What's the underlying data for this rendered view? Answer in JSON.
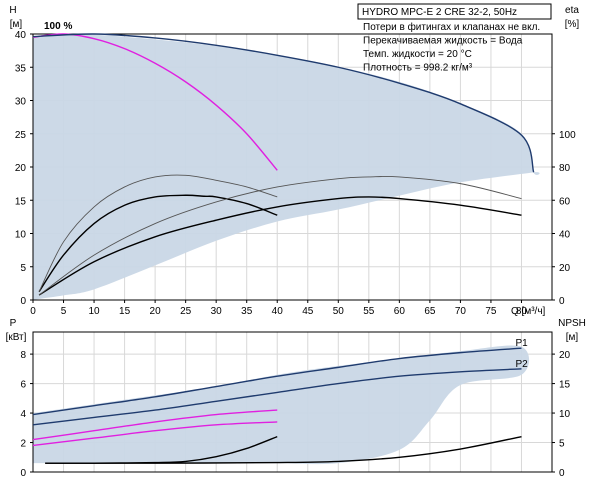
{
  "chart_data": [
    {
      "type": "line",
      "title": "HYDRO MPC-E 2 CRE 32-2, 50Hz",
      "notes": [
        "Потери в фитингах и клапанах не вкл.",
        "Перекачиваемая жидкость = Вода",
        "Темп. жидкости = 20 °C",
        "Плотность = 998.2 кг/м³"
      ],
      "duty_label": "100 %",
      "x_axis": {
        "label": "Q [м³/ч]",
        "range": [
          0,
          85
        ],
        "ticks": [
          0,
          5,
          10,
          15,
          20,
          25,
          30,
          35,
          40,
          45,
          50,
          55,
          60,
          65,
          70,
          75,
          80
        ]
      },
      "y_left": {
        "label_top": "H",
        "label_unit": "[м]",
        "range": [
          0,
          40
        ],
        "ticks": [
          0,
          5,
          10,
          15,
          20,
          25,
          30,
          35,
          40
        ]
      },
      "y_right": {
        "label_top": "eta",
        "label_unit": "[%]",
        "range": [
          0,
          160
        ],
        "ticks": [
          0,
          20,
          40,
          60,
          80,
          100
        ]
      },
      "envelope": {
        "x": [
          0,
          2,
          5,
          10,
          20,
          30,
          40,
          50,
          60,
          70,
          80,
          82,
          82,
          70,
          60,
          50,
          40,
          30,
          20,
          10,
          5,
          2,
          0
        ],
        "y": [
          39.5,
          39.9,
          40,
          39.9,
          39.2,
          38.2,
          36.8,
          35.1,
          32.8,
          29.6,
          25.0,
          19.2,
          19.2,
          17.7,
          15.7,
          13.6,
          11.8,
          8.9,
          5.2,
          1.6,
          0.7,
          0.3,
          0
        ]
      },
      "series": [
        {
          "name": "",
          "axis": "left",
          "color": "#e020e0",
          "x": [
            0,
            5,
            10,
            15,
            20,
            25,
            30,
            35,
            40
          ],
          "y": [
            39.5,
            40,
            39.3,
            37.8,
            35.6,
            32.8,
            29.3,
            25.0,
            19.5
          ]
        },
        {
          "name": "",
          "axis": "left",
          "color": "#1f3b6e",
          "x": [
            0,
            10,
            20,
            30,
            40,
            50,
            60,
            70,
            80,
            82
          ],
          "y": [
            39.6,
            40,
            39.4,
            38.3,
            36.8,
            35.0,
            32.6,
            29.5,
            24.8,
            19.2
          ]
        },
        {
          "name": "",
          "axis": "right",
          "color": "#000000",
          "x": [
            1,
            5,
            10,
            15,
            20,
            25,
            28,
            30,
            35,
            40
          ],
          "y": [
            5,
            27,
            46,
            57,
            62,
            63,
            62.4,
            62,
            58,
            51
          ]
        },
        {
          "name": "",
          "axis": "right",
          "color": "#555555",
          "x": [
            1,
            5,
            10,
            15,
            20,
            25,
            30,
            35,
            40
          ],
          "y": [
            5,
            35,
            56,
            68,
            74,
            75,
            72,
            68,
            62
          ]
        },
        {
          "name": "",
          "axis": "right",
          "color": "#000000",
          "x": [
            1,
            10,
            20,
            30,
            40,
            50,
            55,
            60,
            70,
            80
          ],
          "y": [
            3,
            23,
            38,
            48,
            56,
            61,
            62,
            61,
            57,
            51
          ]
        },
        {
          "name": "",
          "axis": "right",
          "color": "#555555",
          "x": [
            1,
            10,
            20,
            30,
            40,
            50,
            55,
            60,
            70,
            80
          ],
          "y": [
            3,
            27,
            46,
            59,
            68,
            73,
            74,
            74,
            70,
            61
          ]
        }
      ]
    },
    {
      "type": "line",
      "x_axis": {
        "range": [
          0,
          85
        ]
      },
      "y_left": {
        "label_top": "P",
        "label_unit": "[кВт]",
        "range": [
          0,
          9.5
        ],
        "ticks": [
          0,
          2,
          4,
          6,
          8
        ]
      },
      "y_right": {
        "label_top": "NPSH",
        "label_unit": "[м]",
        "range": [
          0,
          23.75
        ],
        "ticks": [
          0,
          5,
          10,
          15,
          20
        ]
      },
      "envelope": {
        "x": [
          0,
          10,
          20,
          30,
          40,
          50,
          60,
          70,
          80,
          80,
          70,
          65,
          60,
          50,
          40,
          30,
          20,
          10,
          0
        ],
        "y": [
          4.0,
          4.6,
          5.2,
          5.8,
          6.6,
          7.2,
          7.7,
          8.2,
          8.5,
          6.6,
          5.9,
          3.5,
          1.5,
          0.6,
          0.6,
          0.6,
          0.6,
          0.6,
          0.6
        ]
      },
      "series": [
        {
          "name": "P1",
          "axis": "left",
          "color": "#1f3b6e",
          "x": [
            0,
            10,
            20,
            30,
            40,
            50,
            60,
            70,
            80
          ],
          "y": [
            3.9,
            4.5,
            5.1,
            5.8,
            6.5,
            7.1,
            7.7,
            8.1,
            8.4
          ]
        },
        {
          "name": "P2",
          "axis": "left",
          "color": "#1f3b6e",
          "x": [
            0,
            10,
            20,
            30,
            40,
            50,
            60,
            70,
            80
          ],
          "y": [
            3.2,
            3.7,
            4.2,
            4.8,
            5.4,
            6.0,
            6.5,
            6.8,
            7.0
          ]
        },
        {
          "name": "",
          "axis": "left",
          "color": "#e020e0",
          "x": [
            0,
            10,
            20,
            30,
            40
          ],
          "y": [
            2.2,
            2.8,
            3.4,
            3.9,
            4.2
          ]
        },
        {
          "name": "",
          "axis": "left",
          "color": "#e020e0",
          "x": [
            0,
            10,
            20,
            30,
            40
          ],
          "y": [
            1.8,
            2.3,
            2.8,
            3.2,
            3.4
          ]
        },
        {
          "name": "",
          "axis": "right",
          "color": "#000000",
          "x": [
            2,
            10,
            20,
            25,
            30,
            35,
            40
          ],
          "y": [
            1.5,
            1.5,
            1.6,
            1.8,
            2.6,
            4.0,
            6.0
          ]
        },
        {
          "name": "",
          "axis": "right",
          "color": "#000000",
          "x": [
            2,
            20,
            40,
            50,
            60,
            70,
            80
          ],
          "y": [
            1.5,
            1.5,
            1.6,
            1.8,
            2.5,
            3.9,
            6.0
          ]
        }
      ]
    }
  ]
}
